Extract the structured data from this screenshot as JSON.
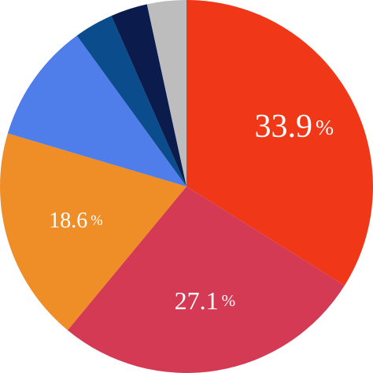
{
  "chart_data": {
    "type": "pie",
    "title": "",
    "start_angle_deg": 0,
    "direction": "clockwise",
    "slices": [
      {
        "value": 33.9,
        "label": "33.9",
        "unit": "%",
        "show_label": true,
        "color": "#F03818"
      },
      {
        "value": 27.1,
        "label": "27.1",
        "unit": "%",
        "show_label": true,
        "color": "#D53A55"
      },
      {
        "value": 18.6,
        "label": "18.6",
        "unit": "%",
        "show_label": true,
        "color": "#EF8D27"
      },
      {
        "value": 10.4,
        "label": "",
        "unit": "",
        "show_label": false,
        "color": "#4F7DEA"
      },
      {
        "value": 3.4,
        "label": "",
        "unit": "",
        "show_label": false,
        "color": "#0A4C8C"
      },
      {
        "value": 3.2,
        "label": "",
        "unit": "",
        "show_label": false,
        "color": "#0B1C4C"
      },
      {
        "value": 3.4,
        "label": "",
        "unit": "",
        "show_label": false,
        "color": "#BDBDBD"
      }
    ]
  }
}
